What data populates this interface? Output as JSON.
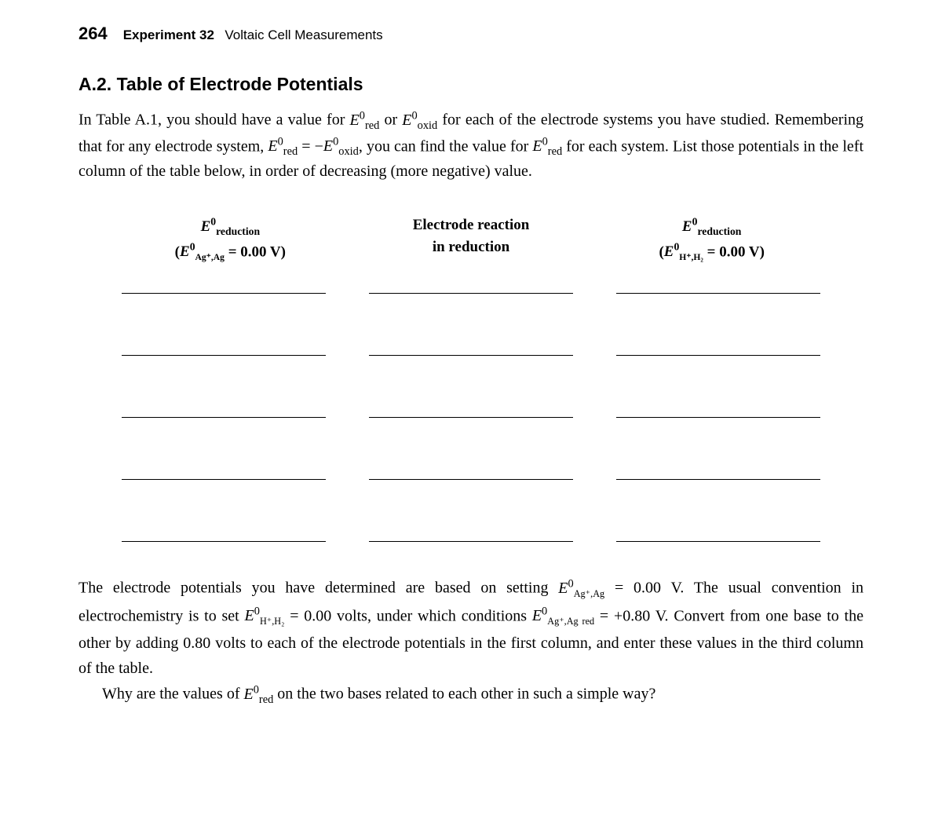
{
  "header": {
    "page_number": "264",
    "experiment_label": "Experiment 32",
    "experiment_title": "Voltaic Cell Measurements"
  },
  "section": {
    "title": "A.2. Table of Electrode Potentials",
    "intro_part1": "In Table A.1, you should have a value for ",
    "intro_part2": " or ",
    "intro_part3": " for each of the electrode systems you have studied. Remembering that for any electrode system, ",
    "intro_part4": ", you can find the value for ",
    "intro_part5": " for each system. List those potentials in the left column of the table below, in order of decreasing (more negative) value."
  },
  "table": {
    "header_col1_line1": "reduction",
    "header_col1_line2_ref": "= 0.00 V)",
    "header_col2_line1": "Electrode reaction",
    "header_col2_line2": "in reduction",
    "header_col3_line1": "reduction",
    "header_col3_line2_ref": "= 0.00 V)",
    "row_count": 5
  },
  "closing": {
    "part1": "The electrode potentials you have determined are based on setting ",
    "part2": " = 0.00 V. The usual convention in electrochemistry is to set ",
    "part3": " = 0.00 volts, under which conditions ",
    "part4": " = +0.80 V. Convert from one base to the other by adding 0.80 volts to each of the electrode potentials in the first column, and enter these values in the third column of the table.",
    "part5": "Why are the values of ",
    "part6": " on the two bases related to each other in such a simple way?"
  },
  "symbols": {
    "E": "E",
    "sup0": "0",
    "sub_red": "red",
    "sub_oxid": "oxid",
    "sub_AgAg": "Ag⁺,Ag",
    "sub_HH2": "H⁺,H₂",
    "sub_AgAg_red": "Ag⁺,Ag red",
    "equals_neg": " = −"
  },
  "styles": {
    "text_color": "#000000",
    "background_color": "#ffffff",
    "body_fontsize": 20,
    "title_fontsize": 23,
    "header_fontsize": 17
  }
}
